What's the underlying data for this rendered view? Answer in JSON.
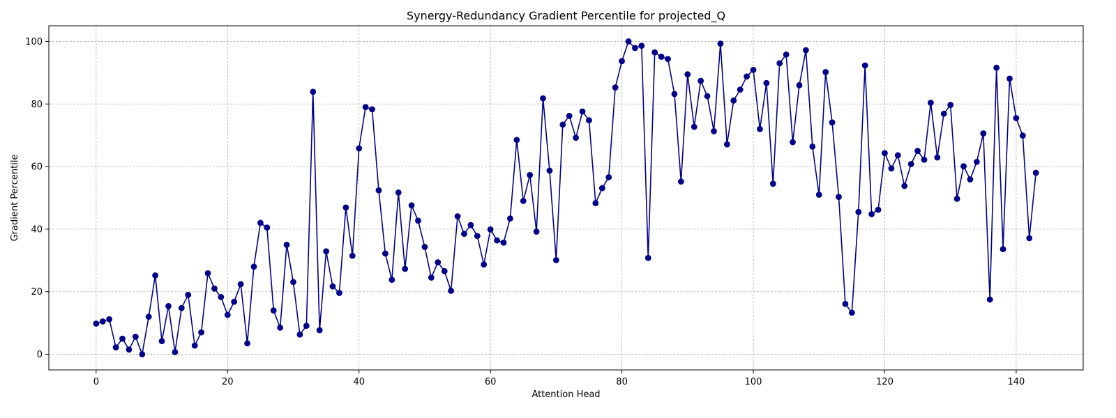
{
  "chart_data": {
    "type": "line",
    "title": "Synergy-Redundancy Gradient Percentile for projected_Q",
    "xlabel": "Attention Head",
    "ylabel": "Gradient Percentile",
    "xlim": [
      -7.2,
      150.2
    ],
    "ylim": [
      -5,
      105
    ],
    "xticks": [
      0,
      20,
      40,
      60,
      80,
      100,
      120,
      140
    ],
    "yticks": [
      0,
      20,
      40,
      60,
      80,
      100
    ],
    "grid": true,
    "marker": "circle",
    "colors": {
      "line": "#00008b",
      "marker": "#00008b",
      "grid": "#b0b0b0"
    },
    "series": [
      {
        "x": [
          0,
          1,
          2,
          3,
          4,
          5,
          6,
          7,
          8,
          9,
          10,
          11,
          12,
          13,
          14,
          15,
          16,
          17,
          18,
          19,
          20,
          21,
          22,
          23,
          24,
          25,
          26,
          27,
          28,
          29,
          30,
          31,
          32,
          33,
          34,
          35,
          36,
          37,
          38,
          39,
          40,
          41,
          42,
          43,
          44,
          45,
          46,
          47,
          48,
          49,
          50,
          51,
          52,
          53,
          54,
          55,
          56,
          57,
          58,
          59,
          60,
          61,
          62,
          63,
          64,
          65,
          66,
          67,
          68,
          69,
          70,
          71,
          72,
          73,
          74,
          75,
          76,
          77,
          78,
          79,
          80,
          81,
          82,
          83,
          84,
          85,
          86,
          87,
          88,
          89,
          90,
          91,
          92,
          93,
          94,
          95,
          96,
          97,
          98,
          99,
          100,
          101,
          102,
          103,
          104,
          105,
          106,
          107,
          108,
          109,
          110,
          111,
          112,
          113,
          114,
          115,
          116,
          117,
          118,
          119,
          120,
          121,
          122,
          123,
          124,
          125,
          126,
          127,
          128,
          129,
          130,
          131,
          132,
          133,
          134,
          135,
          136,
          137,
          138,
          139,
          140,
          141,
          142,
          143
        ],
        "values": [
          9.8,
          10.5,
          11.2,
          2.2,
          5.0,
          1.5,
          5.6,
          0.0,
          12.0,
          25.2,
          4.2,
          15.4,
          0.7,
          14.8,
          19.0,
          2.8,
          7.0,
          25.9,
          21.0,
          18.3,
          12.6,
          16.8,
          22.4,
          3.5,
          28.0,
          42.0,
          40.5,
          14.0,
          8.5,
          35.0,
          23.1,
          6.3,
          9.1,
          83.9,
          7.7,
          32.9,
          21.7,
          19.6,
          46.9,
          31.5,
          65.8,
          79.0,
          78.3,
          52.4,
          32.2,
          23.8,
          51.7,
          27.3,
          47.6,
          42.7,
          34.3,
          24.5,
          29.4,
          26.6,
          20.3,
          44.1,
          38.5,
          41.3,
          37.8,
          28.7,
          39.9,
          36.4,
          35.7,
          43.4,
          68.5,
          49.0,
          57.3,
          39.2,
          81.8,
          58.7,
          30.1,
          73.4,
          76.2,
          69.2,
          77.6,
          74.8,
          48.3,
          53.1,
          56.6,
          85.3,
          93.7,
          100.0,
          97.9,
          98.6,
          30.8,
          96.5,
          95.1,
          94.4,
          83.2,
          55.2,
          89.5,
          72.7,
          87.4,
          82.5,
          71.3,
          99.3,
          67.1,
          81.1,
          84.6,
          88.8,
          90.9,
          72.0,
          86.7,
          54.5,
          93.0,
          95.8,
          67.8,
          86.0,
          97.2,
          66.4,
          51.0,
          90.2,
          74.1,
          50.3,
          16.1,
          13.3,
          45.5,
          92.3,
          44.8,
          46.2,
          64.3,
          59.4,
          63.6,
          53.8,
          60.8,
          65.0,
          62.2,
          80.4,
          62.9,
          76.9,
          79.7,
          49.7,
          60.1,
          55.9,
          61.5,
          70.6,
          17.5,
          91.6,
          33.6,
          88.1,
          75.5,
          69.9,
          37.1,
          58.0
        ]
      }
    ]
  }
}
